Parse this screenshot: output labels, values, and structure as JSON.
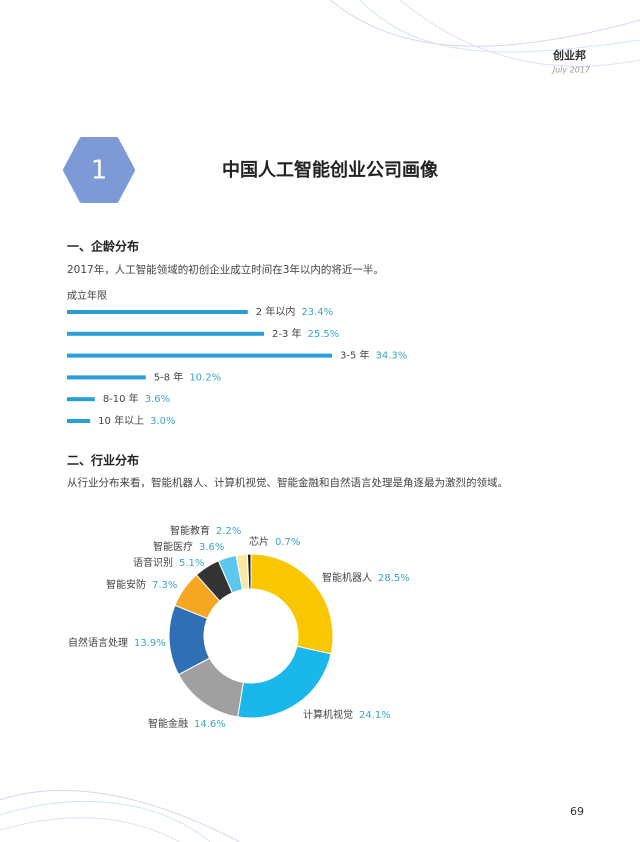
{
  "header": {
    "brand": "创业邦",
    "date": "July 2017"
  },
  "section": {
    "number": "1",
    "title": "中国人工智能创业公司画像"
  },
  "part1": {
    "heading": "一、企龄分布",
    "text": "2017年，人工智能领域的初创企业成立时间在3年以内的将近一半。"
  },
  "part2": {
    "heading": "二、行业分布",
    "text": "从行业分布来看，智能机器人、计算机视觉、智能金融和自然语言处理是角逐最为激烈的领域。"
  },
  "chart_data": [
    {
      "type": "bar",
      "orientation": "horizontal",
      "title": "成立年限",
      "color": "#2a9fd6",
      "categories": [
        "2 年以内",
        "2-3 年",
        "3-5 年",
        "5-8 年",
        "8-10 年",
        "10 年以上"
      ],
      "values": [
        23.4,
        25.5,
        34.3,
        10.2,
        3.6,
        3.0
      ],
      "value_labels": [
        "23.4%",
        "25.5%",
        "34.3%",
        "10.2%",
        "3.6%",
        "3.0%"
      ]
    },
    {
      "type": "pie",
      "donut": true,
      "categories": [
        "智能机器人",
        "计算机视觉",
        "智能金融",
        "自然语言处理",
        "智能安防",
        "语音识别",
        "智能医疗",
        "智能教育",
        "芯片"
      ],
      "values": [
        28.5,
        24.1,
        14.6,
        13.9,
        7.3,
        5.1,
        3.6,
        2.2,
        0.7
      ],
      "value_labels": [
        "28.5%",
        "24.1%",
        "14.6%",
        "13.9%",
        "7.3%",
        "5.1%",
        "3.6%",
        "2.2%",
        "0.7%"
      ],
      "colors": [
        "#f9c700",
        "#1ab7ea",
        "#a0a0a0",
        "#2f6fb5",
        "#f5a623",
        "#333333",
        "#5bc8f0",
        "#fbe7a1",
        "#222222"
      ]
    }
  ],
  "page_number": "69"
}
